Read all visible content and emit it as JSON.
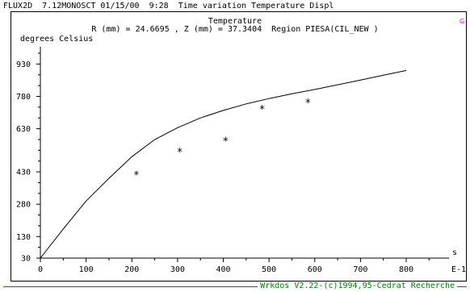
{
  "header": {
    "text": "FLUX2D  7.12MONOSCT 01/15/00  9:28  Time variation Temperature Displ"
  },
  "plot": {
    "title": "Temperature",
    "subtitle": "R (mm) = 24.6695 , Z (mm) = 37.3404  Region PIESA(CIL_NEW )",
    "corner_flag": "G",
    "y_unit_label": "degrees Celsius",
    "x_unit_label": "s",
    "x_exponent_label": "E-1"
  },
  "chart_data": {
    "type": "line",
    "title": "Temperature",
    "xlabel": "s",
    "ylabel": "degrees Celsius",
    "xlim": [
      0,
      860
    ],
    "ylim": [
      30,
      1010
    ],
    "x_ticks": [
      0,
      100,
      200,
      300,
      400,
      500,
      600,
      700,
      800
    ],
    "y_ticks": [
      30,
      130,
      280,
      430,
      630,
      780,
      930
    ],
    "grid": false,
    "series": [
      {
        "style": "line",
        "x": [
          0,
          50,
          100,
          150,
          200,
          250,
          300,
          350,
          400,
          450,
          500,
          550,
          600,
          650,
          700,
          750,
          800
        ],
        "y": [
          30,
          165,
          295,
          400,
          500,
          580,
          635,
          680,
          715,
          745,
          770,
          792,
          812,
          834,
          856,
          878,
          900
        ]
      },
      {
        "style": "markers",
        "marker": "*",
        "x": [
          210,
          305,
          405,
          485,
          585
        ],
        "y": [
          420,
          528,
          578,
          725,
          756
        ]
      }
    ]
  },
  "footer": {
    "text": "Wrkdos V2.22-(c)1994,95-Cedrat Recherche"
  }
}
